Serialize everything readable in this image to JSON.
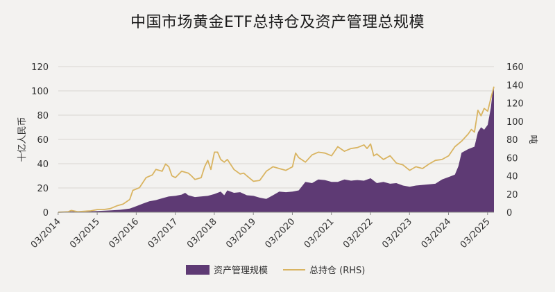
{
  "title": "中国市场黄金ETF总持仓及资产管理总规模",
  "colors": {
    "aum": "#5e3a74",
    "holdings": "#d9b461",
    "grid": "#d8d6d2",
    "axis": "#888888"
  },
  "chart_data": {
    "type": "area",
    "xlabels": [
      "03/2014",
      "03/2015",
      "03/2016",
      "03/2017",
      "03/2018",
      "03/2019",
      "03/2020",
      "03/2021",
      "03/2022",
      "03/2023",
      "03/2024",
      "03/2025"
    ],
    "ylabel_left": "十亿人民币",
    "ylabel_right": "吨",
    "ylim_left": [
      0,
      120
    ],
    "ylim_right": [
      0,
      160
    ],
    "yticks_left": [
      "0",
      "20",
      "40",
      "60",
      "80",
      "100",
      "120"
    ],
    "yticks_right": [
      "0",
      "20",
      "40",
      "60",
      "80",
      "100",
      "120",
      "140",
      "160"
    ],
    "grid": true,
    "legend_position": "bottom",
    "series": [
      {
        "name": "资产管理规模",
        "axis": "left",
        "style": "area",
        "points": [
          [
            2014.17,
            0.4
          ],
          [
            2014.5,
            0.6
          ],
          [
            2014.75,
            0.7
          ],
          [
            2015.0,
            0.8
          ],
          [
            2015.17,
            1.0
          ],
          [
            2015.5,
            1.5
          ],
          [
            2015.75,
            2.0
          ],
          [
            2016.0,
            3.0
          ],
          [
            2016.17,
            5.0
          ],
          [
            2016.33,
            7.0
          ],
          [
            2016.5,
            9.0
          ],
          [
            2016.67,
            10.0
          ],
          [
            2016.83,
            11.5
          ],
          [
            2017.0,
            13.0
          ],
          [
            2017.17,
            13.5
          ],
          [
            2017.33,
            14.5
          ],
          [
            2017.42,
            16.0
          ],
          [
            2017.5,
            14.0
          ],
          [
            2017.67,
            12.5
          ],
          [
            2017.83,
            13.0
          ],
          [
            2018.0,
            13.5
          ],
          [
            2018.17,
            15.0
          ],
          [
            2018.33,
            17.0
          ],
          [
            2018.42,
            14.0
          ],
          [
            2018.5,
            18.0
          ],
          [
            2018.67,
            16.0
          ],
          [
            2018.83,
            16.5
          ],
          [
            2019.0,
            14.0
          ],
          [
            2019.17,
            13.5
          ],
          [
            2019.33,
            12.0
          ],
          [
            2019.5,
            11.0
          ],
          [
            2019.67,
            14.0
          ],
          [
            2019.83,
            17.0
          ],
          [
            2020.0,
            16.5
          ],
          [
            2020.17,
            17.0
          ],
          [
            2020.33,
            18.0
          ],
          [
            2020.5,
            25.0
          ],
          [
            2020.67,
            24.0
          ],
          [
            2020.83,
            27.0
          ],
          [
            2021.0,
            26.5
          ],
          [
            2021.17,
            25.0
          ],
          [
            2021.33,
            25.0
          ],
          [
            2021.5,
            27.0
          ],
          [
            2021.67,
            26.0
          ],
          [
            2021.83,
            26.5
          ],
          [
            2022.0,
            26.0
          ],
          [
            2022.17,
            28.0
          ],
          [
            2022.33,
            24.0
          ],
          [
            2022.5,
            25.0
          ],
          [
            2022.67,
            23.5
          ],
          [
            2022.83,
            24.0
          ],
          [
            2023.0,
            22.0
          ],
          [
            2023.17,
            21.0
          ],
          [
            2023.33,
            22.0
          ],
          [
            2023.5,
            22.5
          ],
          [
            2023.67,
            23.0
          ],
          [
            2023.83,
            23.5
          ],
          [
            2024.0,
            27.0
          ],
          [
            2024.17,
            29.0
          ],
          [
            2024.33,
            31.0
          ],
          [
            2024.42,
            38.0
          ],
          [
            2024.5,
            49.0
          ],
          [
            2024.67,
            52.0
          ],
          [
            2024.83,
            54.0
          ],
          [
            2024.92,
            66.0
          ],
          [
            2025.0,
            70.0
          ],
          [
            2025.08,
            68.0
          ],
          [
            2025.17,
            72.0
          ],
          [
            2025.25,
            86.0
          ],
          [
            2025.3,
            100.0
          ],
          [
            2025.33,
            102.0
          ]
        ]
      },
      {
        "name": "总持仓 (RHS)",
        "axis": "right",
        "style": "line",
        "points": [
          [
            2014.17,
            0
          ],
          [
            2014.42,
            0.5
          ],
          [
            2014.5,
            2.0
          ],
          [
            2014.67,
            0.5
          ],
          [
            2015.0,
            1.5
          ],
          [
            2015.17,
            3.0
          ],
          [
            2015.33,
            3.0
          ],
          [
            2015.5,
            4.0
          ],
          [
            2015.67,
            7.0
          ],
          [
            2015.83,
            9.0
          ],
          [
            2016.0,
            14.0
          ],
          [
            2016.08,
            24.0
          ],
          [
            2016.25,
            27.0
          ],
          [
            2016.42,
            38.0
          ],
          [
            2016.58,
            41.0
          ],
          [
            2016.67,
            47.0
          ],
          [
            2016.83,
            45.0
          ],
          [
            2016.92,
            53.0
          ],
          [
            2017.0,
            50.0
          ],
          [
            2017.08,
            40.0
          ],
          [
            2017.17,
            38.0
          ],
          [
            2017.33,
            45.0
          ],
          [
            2017.5,
            43.0
          ],
          [
            2017.58,
            40.0
          ],
          [
            2017.67,
            36.0
          ],
          [
            2017.83,
            38.0
          ],
          [
            2017.92,
            50.0
          ],
          [
            2018.0,
            57.0
          ],
          [
            2018.08,
            47.0
          ],
          [
            2018.17,
            66.0
          ],
          [
            2018.25,
            66.0
          ],
          [
            2018.33,
            58.0
          ],
          [
            2018.42,
            55.0
          ],
          [
            2018.5,
            58.0
          ],
          [
            2018.67,
            47.0
          ],
          [
            2018.83,
            42.0
          ],
          [
            2018.92,
            43.0
          ],
          [
            2019.0,
            40.0
          ],
          [
            2019.17,
            34.0
          ],
          [
            2019.33,
            35.0
          ],
          [
            2019.5,
            45.0
          ],
          [
            2019.67,
            50.0
          ],
          [
            2019.83,
            48.0
          ],
          [
            2020.0,
            46.0
          ],
          [
            2020.17,
            50.0
          ],
          [
            2020.25,
            65.0
          ],
          [
            2020.33,
            60.0
          ],
          [
            2020.5,
            55.0
          ],
          [
            2020.67,
            63.0
          ],
          [
            2020.83,
            66.0
          ],
          [
            2021.0,
            65.0
          ],
          [
            2021.17,
            62.0
          ],
          [
            2021.33,
            72.0
          ],
          [
            2021.5,
            67.0
          ],
          [
            2021.67,
            70.0
          ],
          [
            2021.83,
            71.0
          ],
          [
            2022.0,
            74.0
          ],
          [
            2022.08,
            70.0
          ],
          [
            2022.17,
            75.0
          ],
          [
            2022.25,
            62.0
          ],
          [
            2022.33,
            64.0
          ],
          [
            2022.5,
            58.0
          ],
          [
            2022.67,
            62.0
          ],
          [
            2022.83,
            54.0
          ],
          [
            2023.0,
            52.0
          ],
          [
            2023.17,
            46.0
          ],
          [
            2023.33,
            50.0
          ],
          [
            2023.5,
            48.0
          ],
          [
            2023.67,
            53.0
          ],
          [
            2023.83,
            57.0
          ],
          [
            2024.0,
            58.0
          ],
          [
            2024.17,
            62.0
          ],
          [
            2024.33,
            72.0
          ],
          [
            2024.5,
            78.0
          ],
          [
            2024.67,
            86.0
          ],
          [
            2024.75,
            91.0
          ],
          [
            2024.83,
            88.0
          ],
          [
            2024.92,
            112.0
          ],
          [
            2025.0,
            106.0
          ],
          [
            2025.08,
            114.0
          ],
          [
            2025.17,
            111.0
          ],
          [
            2025.25,
            125.0
          ],
          [
            2025.33,
            138.0
          ]
        ]
      }
    ]
  }
}
